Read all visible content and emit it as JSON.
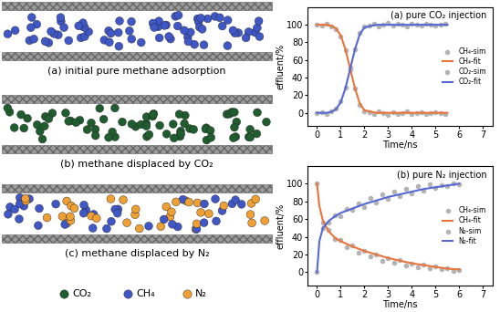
{
  "panels": [
    {
      "caption": "(a) initial pure methane adsorption",
      "species": [
        "CH₄"
      ]
    },
    {
      "caption": "(b) methane displaced by CO₂",
      "species": [
        "CO₂"
      ]
    },
    {
      "caption": "(c) methane displaced by N₂",
      "species": [
        "CH₄",
        "N₂"
      ]
    }
  ],
  "molecule_legend": [
    {
      "name": "CO₂",
      "color": "#1f5c2e"
    },
    {
      "name": "CH₄",
      "color": "#4057c8"
    },
    {
      "name": "N₂",
      "color": "#f0a033"
    }
  ],
  "chart_data": [
    {
      "type": "line",
      "title": "(a) pure CO₂ injection",
      "x_label": "Time/ns",
      "y_label": "effluent/%",
      "xlim": [
        -0.4,
        7.4
      ],
      "ylim": [
        -15,
        120
      ],
      "xticks": [
        0,
        1,
        2,
        3,
        4,
        5,
        6,
        7
      ],
      "yticks": [
        0,
        20,
        40,
        60,
        80,
        100
      ],
      "grid": false,
      "legend": "center right",
      "series": [
        {
          "name": "CH₄-sim",
          "type": "scatter",
          "color": "#b4b4b4",
          "marker": "circle",
          "x": [
            0,
            0.2,
            0.4,
            0.6,
            0.8,
            1.0,
            1.2,
            1.4,
            1.6,
            1.8,
            2.0,
            2.2,
            2.4,
            2.6,
            2.8,
            3.0,
            3.2,
            3.4,
            3.6,
            3.8,
            4.0,
            4.2,
            4.4,
            4.6,
            4.8,
            5.0,
            5.2,
            5.4
          ],
          "values": [
            100,
            99,
            101,
            98,
            95,
            87,
            71,
            49,
            28,
            9,
            2,
            1,
            -1,
            2,
            0,
            -2,
            1,
            -1,
            0,
            2,
            -1,
            0,
            1,
            -1,
            0,
            1,
            0,
            -1
          ]
        },
        {
          "name": "CH₄-fit",
          "type": "line",
          "color": "#e8743b",
          "line_style": "solid",
          "x": [
            0,
            0.2,
            0.4,
            0.6,
            0.8,
            1.0,
            1.2,
            1.4,
            1.6,
            1.8,
            2.0,
            2.5,
            3,
            4,
            5,
            5.5
          ],
          "values": [
            100,
            100,
            100,
            99,
            96,
            88,
            72,
            50,
            28,
            11,
            3,
            0,
            0,
            0,
            0,
            0
          ]
        },
        {
          "name": "CO₂-sim",
          "type": "scatter",
          "color": "#b4b4b4",
          "marker": "circle",
          "x": [
            0,
            0.2,
            0.4,
            0.6,
            0.8,
            1.0,
            1.2,
            1.4,
            1.6,
            1.8,
            2.0,
            2.2,
            2.4,
            2.6,
            2.8,
            3.0,
            3.2,
            3.4,
            3.6,
            3.8,
            4.0,
            4.2,
            4.4,
            4.6,
            4.8,
            5.0,
            5.2,
            5.4
          ],
          "values": [
            0,
            1,
            -1,
            2,
            5,
            13,
            29,
            51,
            72,
            91,
            98,
            99,
            101,
            98,
            100,
            102,
            99,
            101,
            100,
            98,
            101,
            100,
            99,
            101,
            100,
            99,
            100,
            101
          ]
        },
        {
          "name": "CO₂-fit",
          "type": "line",
          "color": "#5568d4",
          "line_style": "solid",
          "x": [
            0,
            0.2,
            0.4,
            0.6,
            0.8,
            1.0,
            1.2,
            1.4,
            1.6,
            1.8,
            2.0,
            2.5,
            3,
            4,
            5,
            5.5
          ],
          "values": [
            0,
            0,
            0,
            1,
            4,
            12,
            28,
            50,
            72,
            89,
            97,
            100,
            100,
            100,
            100,
            100
          ]
        }
      ]
    },
    {
      "type": "line",
      "title": "(b) pure N₂ injection",
      "x_label": "Time/ns",
      "y_label": "effluent/%",
      "xlim": [
        -0.4,
        7.4
      ],
      "ylim": [
        -15,
        120
      ],
      "xticks": [
        0,
        1,
        2,
        3,
        4,
        5,
        6,
        7
      ],
      "yticks": [
        0,
        20,
        40,
        60,
        80,
        100
      ],
      "grid": false,
      "legend": "center right",
      "series": [
        {
          "name": "CH₄-sim",
          "type": "scatter",
          "color": "#b4b4b4",
          "marker": "circle",
          "x": [
            0,
            0.25,
            0.5,
            0.75,
            1.0,
            1.25,
            1.5,
            1.75,
            2.0,
            2.25,
            2.5,
            2.75,
            3.0,
            3.25,
            3.5,
            3.75,
            4.0,
            4.25,
            4.5,
            4.75,
            5.0,
            5.25,
            5.5,
            5.75,
            6.0
          ],
          "values": [
            100,
            56,
            48,
            38,
            36,
            28,
            30,
            22,
            24,
            18,
            20,
            13,
            16,
            11,
            14,
            8,
            10,
            6,
            9,
            4,
            7,
            3,
            5,
            1,
            2
          ]
        },
        {
          "name": "CH₄-fit",
          "type": "line",
          "color": "#e8743b",
          "line_style": "solid",
          "x": [
            0,
            0.1,
            0.25,
            0.5,
            0.75,
            1,
            1.5,
            2,
            2.5,
            3,
            3.5,
            4,
            4.5,
            5,
            5.5,
            6
          ],
          "values": [
            100,
            75,
            58,
            46,
            39,
            35,
            29,
            24,
            20,
            16,
            13,
            10,
            8,
            6,
            4,
            3
          ]
        },
        {
          "name": "N₂-sim",
          "type": "scatter",
          "color": "#b4b4b4",
          "marker": "circle",
          "x": [
            0,
            0.25,
            0.5,
            0.75,
            1.0,
            1.25,
            1.5,
            1.75,
            2.0,
            2.25,
            2.5,
            2.75,
            3.0,
            3.25,
            3.5,
            3.75,
            4.0,
            4.25,
            4.5,
            4.75,
            5.0,
            5.25,
            5.5,
            5.75,
            6.0
          ],
          "values": [
            0,
            50,
            56,
            64,
            63,
            72,
            70,
            78,
            74,
            84,
            79,
            88,
            83,
            91,
            86,
            94,
            89,
            97,
            92,
            99,
            95,
            98,
            97,
            100,
            99
          ]
        },
        {
          "name": "N₂-fit",
          "type": "line",
          "color": "#5568d4",
          "line_style": "solid",
          "x": [
            0,
            0.1,
            0.25,
            0.5,
            0.75,
            1,
            1.5,
            2,
            2.5,
            3,
            3.5,
            4,
            4.5,
            5,
            5.5,
            6
          ],
          "values": [
            0,
            35,
            50,
            58,
            63,
            67,
            72,
            77,
            81,
            85,
            88,
            91,
            94,
            96,
            98,
            100
          ]
        }
      ]
    }
  ]
}
